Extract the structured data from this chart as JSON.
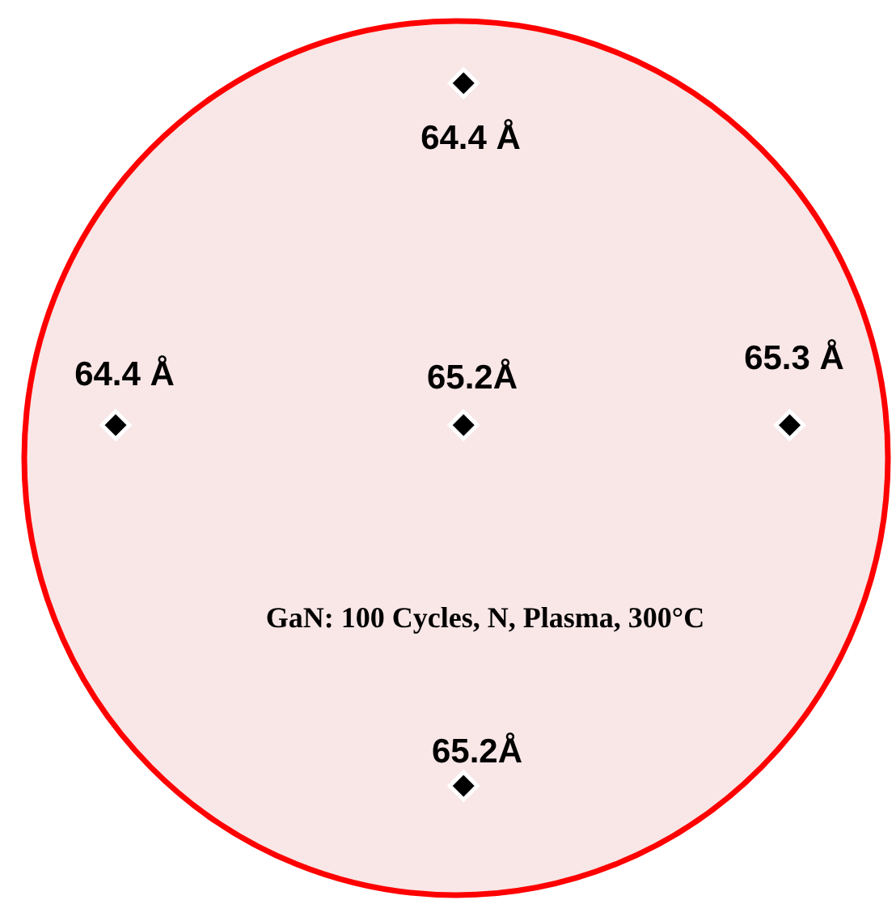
{
  "chart_data": {
    "type": "other",
    "categories": [
      null,
      null,
      null,
      null,
      null
    ],
    "values": [
      64.4,
      64.4,
      65.2,
      65.3,
      65.2
    ],
    "value_labels": [
      "64.4 Å",
      "64.4 Å",
      "65.2Å",
      "65.3 Å",
      "65.2Å"
    ],
    "color": "#000000",
    "annotations": [
      "GaN: 100 Cycles, N, Plasma, 300°C"
    ]
  }
}
